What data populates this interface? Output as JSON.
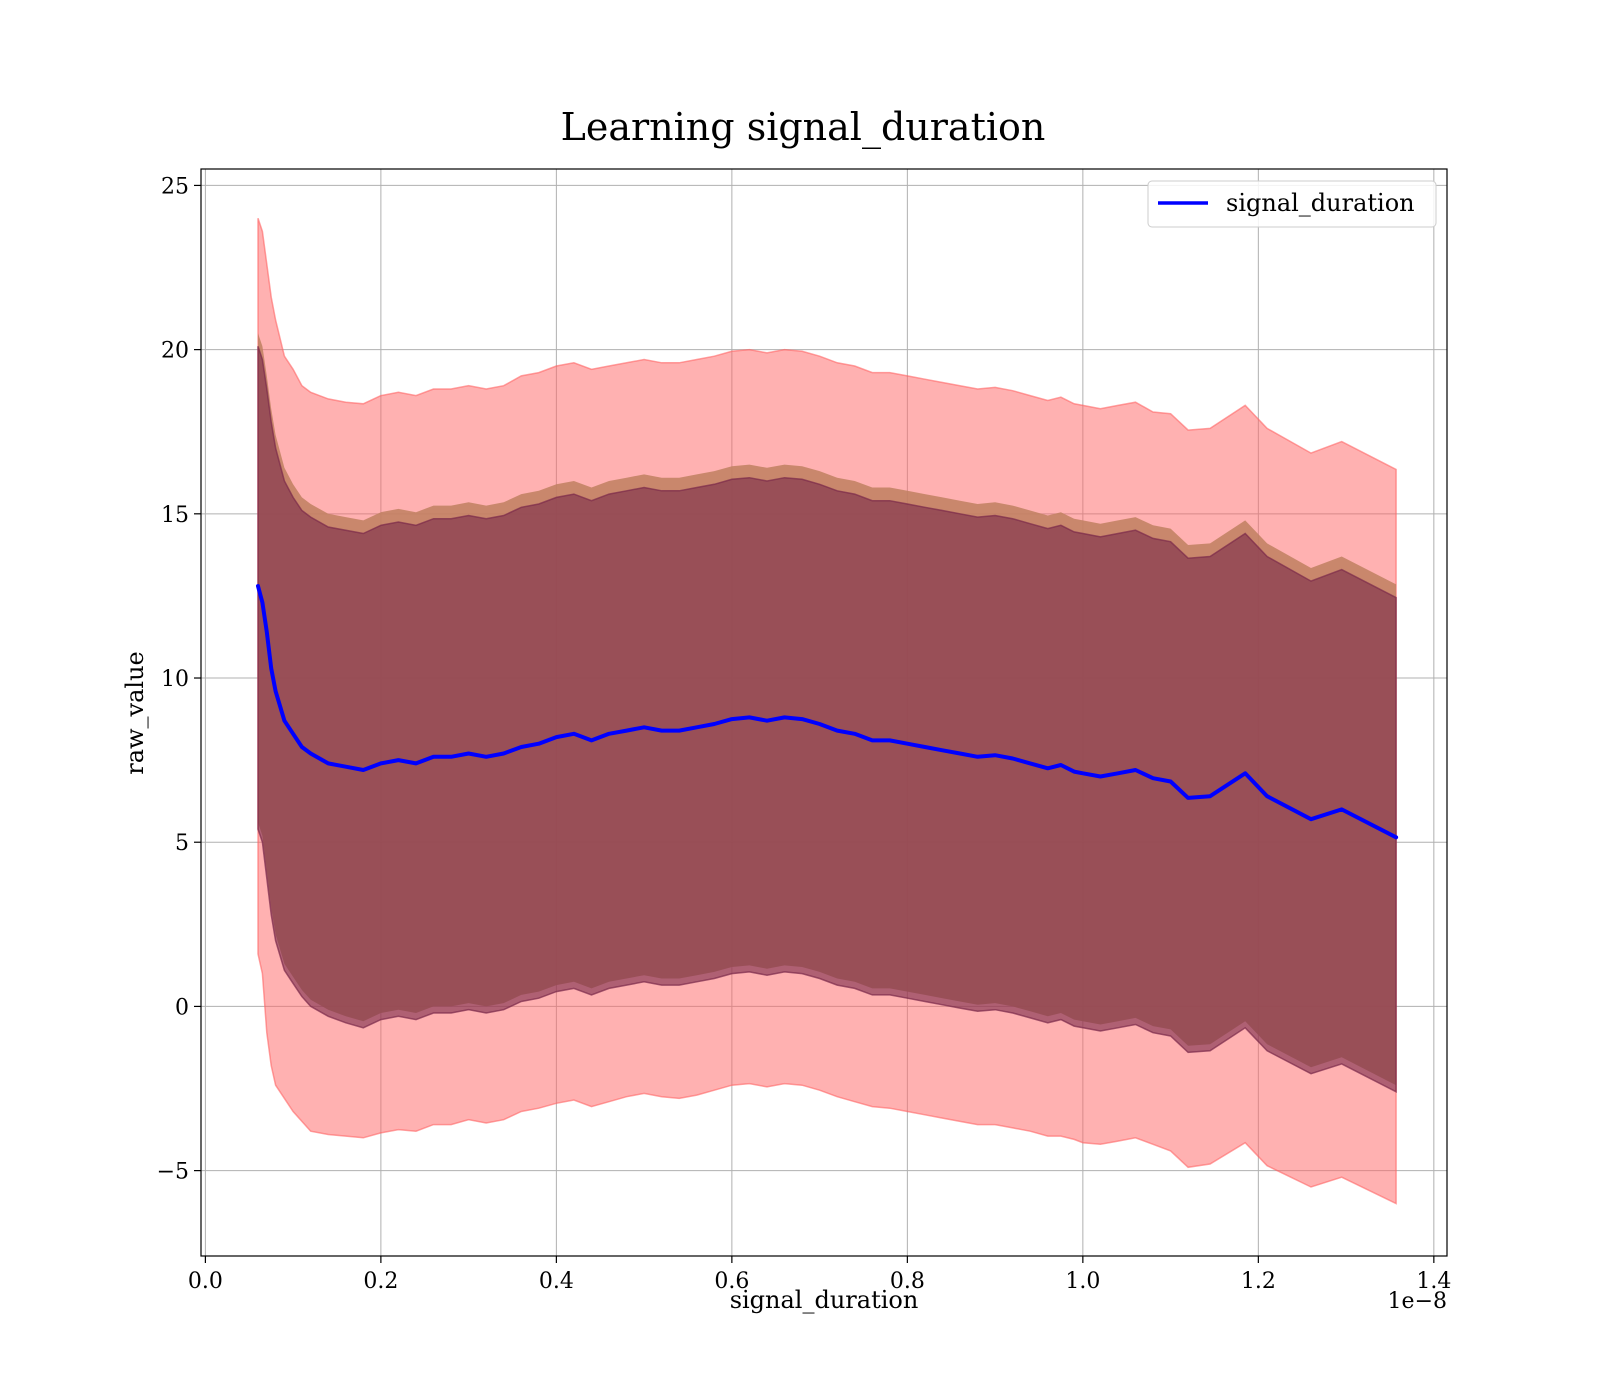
{
  "chart_data": {
    "type": "line",
    "title": "Learning signal_duration",
    "xlabel": "signal_duration",
    "ylabel": "raw_value",
    "x_offset_label": "1e−8",
    "xlim": [
      -0.005,
      1.415
    ],
    "ylim": [
      -7.6,
      25.5
    ],
    "xticks": [
      0.0,
      0.2,
      0.4,
      0.6,
      0.8,
      1.0,
      1.2,
      1.4
    ],
    "xtick_labels": [
      "0.0",
      "0.2",
      "0.4",
      "0.6",
      "0.8",
      "1.0",
      "1.2",
      "1.4"
    ],
    "yticks": [
      -5,
      0,
      5,
      10,
      15,
      20,
      25
    ],
    "ytick_labels": [
      "−5",
      "0",
      "5",
      "10",
      "15",
      "20",
      "25"
    ],
    "grid": true,
    "legend_position": "top-right",
    "colors": {
      "line": "#0000ff",
      "outer_band": "#ff6464",
      "inner_band_edge": "#c08060",
      "inner_band": "#7a2a4a"
    },
    "x": [
      0.06,
      0.065,
      0.07,
      0.075,
      0.08,
      0.09,
      0.1,
      0.11,
      0.12,
      0.14,
      0.16,
      0.18,
      0.2,
      0.22,
      0.24,
      0.26,
      0.28,
      0.3,
      0.32,
      0.34,
      0.36,
      0.38,
      0.4,
      0.42,
      0.44,
      0.46,
      0.48,
      0.5,
      0.52,
      0.54,
      0.56,
      0.58,
      0.6,
      0.62,
      0.64,
      0.66,
      0.68,
      0.7,
      0.72,
      0.74,
      0.76,
      0.78,
      0.8,
      0.82,
      0.84,
      0.86,
      0.88,
      0.9,
      0.92,
      0.94,
      0.96,
      0.975,
      0.99,
      1.0,
      1.02,
      1.04,
      1.06,
      1.08,
      1.1,
      1.12,
      1.145,
      1.185,
      1.21,
      1.26,
      1.295,
      1.357
    ],
    "series": [
      {
        "name": "signal_duration",
        "values": [
          12.8,
          12.3,
          11.4,
          10.3,
          9.6,
          8.7,
          8.3,
          7.9,
          7.7,
          7.4,
          7.3,
          7.2,
          7.4,
          7.5,
          7.4,
          7.6,
          7.6,
          7.7,
          7.6,
          7.7,
          7.9,
          8.0,
          8.2,
          8.3,
          8.1,
          8.3,
          8.4,
          8.5,
          8.4,
          8.4,
          8.5,
          8.6,
          8.75,
          8.8,
          8.7,
          8.8,
          8.75,
          8.6,
          8.4,
          8.3,
          8.1,
          8.1,
          8.0,
          7.9,
          7.8,
          7.7,
          7.6,
          7.65,
          7.55,
          7.4,
          7.25,
          7.35,
          7.15,
          7.1,
          7.0,
          7.1,
          7.2,
          6.95,
          6.85,
          6.35,
          6.4,
          7.1,
          6.4,
          5.7,
          6.0,
          5.15
        ]
      }
    ],
    "bands": [
      {
        "role": "outer",
        "lower": [
          1.6,
          1.0,
          -0.8,
          -1.8,
          -2.4,
          -2.8,
          -3.2,
          -3.5,
          -3.8,
          -3.9,
          -3.95,
          -4.0,
          -3.85,
          -3.75,
          -3.8,
          -3.6,
          -3.6,
          -3.45,
          -3.55,
          -3.45,
          -3.2,
          -3.1,
          -2.95,
          -2.85,
          -3.05,
          -2.9,
          -2.75,
          -2.65,
          -2.75,
          -2.8,
          -2.7,
          -2.55,
          -2.4,
          -2.35,
          -2.45,
          -2.35,
          -2.4,
          -2.55,
          -2.75,
          -2.9,
          -3.05,
          -3.1,
          -3.2,
          -3.3,
          -3.4,
          -3.5,
          -3.6,
          -3.6,
          -3.7,
          -3.8,
          -3.95,
          -3.95,
          -4.05,
          -4.15,
          -4.2,
          -4.1,
          -4.0,
          -4.2,
          -4.4,
          -4.9,
          -4.8,
          -4.15,
          -4.85,
          -5.5,
          -5.2,
          -6.0
        ],
        "upper": [
          24.0,
          23.6,
          22.6,
          21.6,
          20.9,
          19.8,
          19.4,
          18.9,
          18.7,
          18.5,
          18.4,
          18.35,
          18.6,
          18.7,
          18.6,
          18.8,
          18.8,
          18.9,
          18.8,
          18.9,
          19.2,
          19.3,
          19.5,
          19.6,
          19.4,
          19.5,
          19.6,
          19.7,
          19.6,
          19.6,
          19.7,
          19.8,
          19.95,
          20.0,
          19.9,
          20.0,
          19.95,
          19.8,
          19.6,
          19.5,
          19.3,
          19.3,
          19.2,
          19.1,
          19.0,
          18.9,
          18.8,
          18.85,
          18.75,
          18.6,
          18.45,
          18.55,
          18.35,
          18.3,
          18.2,
          18.3,
          18.4,
          18.1,
          18.05,
          17.55,
          17.6,
          18.3,
          17.6,
          16.85,
          17.2,
          16.35
        ]
      },
      {
        "role": "inner-edge",
        "lower": [
          5.6,
          5.2,
          4.1,
          3.0,
          2.2,
          1.3,
          0.9,
          0.5,
          0.2,
          -0.1,
          -0.3,
          -0.45,
          -0.2,
          -0.1,
          -0.2,
          0.0,
          0.0,
          0.1,
          0.0,
          0.1,
          0.35,
          0.45,
          0.65,
          0.75,
          0.55,
          0.75,
          0.85,
          0.95,
          0.85,
          0.85,
          0.95,
          1.05,
          1.2,
          1.25,
          1.15,
          1.25,
          1.2,
          1.05,
          0.85,
          0.75,
          0.55,
          0.55,
          0.45,
          0.35,
          0.25,
          0.15,
          0.05,
          0.1,
          0.0,
          -0.15,
          -0.3,
          -0.2,
          -0.4,
          -0.45,
          -0.55,
          -0.45,
          -0.35,
          -0.6,
          -0.7,
          -1.2,
          -1.15,
          -0.45,
          -1.15,
          -1.85,
          -1.55,
          -2.4
        ],
        "upper": [
          20.5,
          20.1,
          19.2,
          18.2,
          17.4,
          16.4,
          15.9,
          15.5,
          15.3,
          15.0,
          14.9,
          14.8,
          15.05,
          15.15,
          15.05,
          15.25,
          15.25,
          15.35,
          15.25,
          15.35,
          15.6,
          15.7,
          15.9,
          16.0,
          15.8,
          16.0,
          16.1,
          16.2,
          16.1,
          16.1,
          16.2,
          16.3,
          16.45,
          16.5,
          16.4,
          16.5,
          16.45,
          16.3,
          16.1,
          16.0,
          15.8,
          15.8,
          15.7,
          15.6,
          15.5,
          15.4,
          15.3,
          15.35,
          15.25,
          15.1,
          14.95,
          15.05,
          14.85,
          14.8,
          14.7,
          14.8,
          14.9,
          14.65,
          14.55,
          14.05,
          14.1,
          14.8,
          14.1,
          13.35,
          13.7,
          12.85
        ]
      },
      {
        "role": "inner",
        "lower": [
          5.4,
          5.0,
          3.9,
          2.8,
          2.0,
          1.1,
          0.7,
          0.3,
          0.0,
          -0.3,
          -0.5,
          -0.65,
          -0.4,
          -0.3,
          -0.4,
          -0.2,
          -0.2,
          -0.1,
          -0.2,
          -0.1,
          0.15,
          0.25,
          0.45,
          0.55,
          0.35,
          0.55,
          0.65,
          0.75,
          0.65,
          0.65,
          0.75,
          0.85,
          1.0,
          1.05,
          0.95,
          1.05,
          1.0,
          0.85,
          0.65,
          0.55,
          0.35,
          0.35,
          0.25,
          0.15,
          0.05,
          -0.05,
          -0.15,
          -0.1,
          -0.2,
          -0.35,
          -0.5,
          -0.4,
          -0.6,
          -0.65,
          -0.75,
          -0.65,
          -0.55,
          -0.8,
          -0.9,
          -1.4,
          -1.35,
          -0.65,
          -1.35,
          -2.05,
          -1.75,
          -2.6
        ],
        "upper": [
          20.1,
          19.7,
          18.8,
          17.8,
          17.0,
          16.0,
          15.5,
          15.1,
          14.9,
          14.6,
          14.5,
          14.4,
          14.65,
          14.75,
          14.65,
          14.85,
          14.85,
          14.95,
          14.85,
          14.95,
          15.2,
          15.3,
          15.5,
          15.6,
          15.4,
          15.6,
          15.7,
          15.8,
          15.7,
          15.7,
          15.8,
          15.9,
          16.05,
          16.1,
          16.0,
          16.1,
          16.05,
          15.9,
          15.7,
          15.6,
          15.4,
          15.4,
          15.3,
          15.2,
          15.1,
          15.0,
          14.9,
          14.95,
          14.85,
          14.7,
          14.55,
          14.65,
          14.45,
          14.4,
          14.3,
          14.4,
          14.5,
          14.25,
          14.15,
          13.65,
          13.7,
          14.4,
          13.7,
          12.95,
          13.3,
          12.45
        ]
      }
    ]
  }
}
